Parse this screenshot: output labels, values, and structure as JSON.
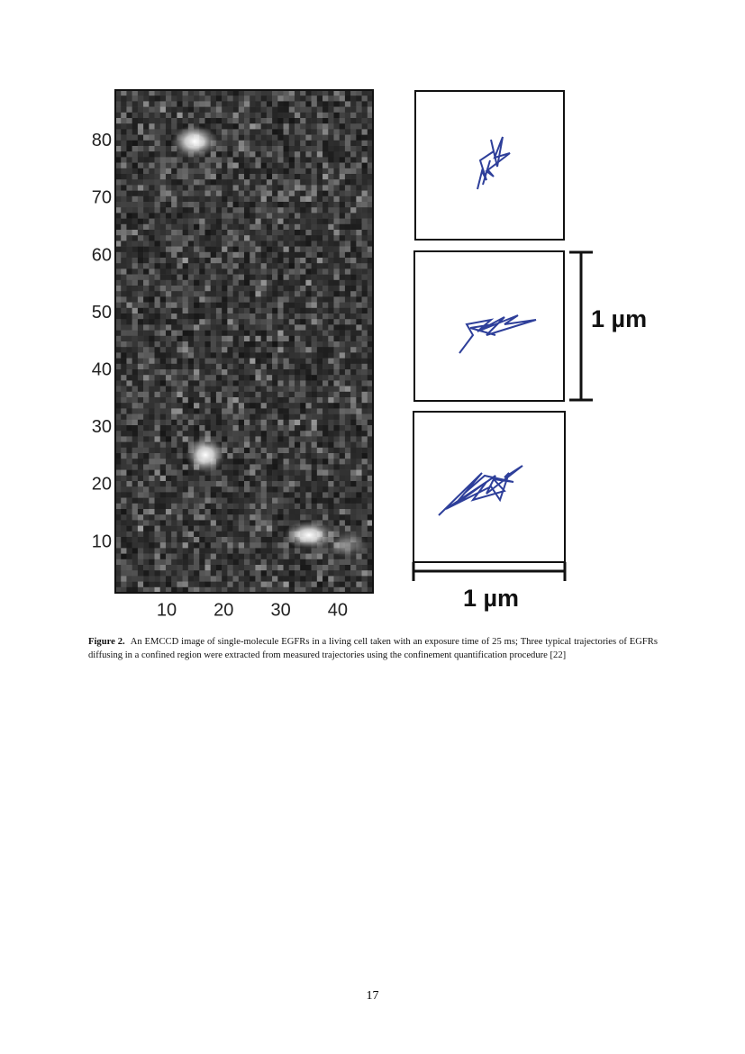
{
  "figure": {
    "image_axes": {
      "yticks": [
        10,
        20,
        30,
        40,
        50,
        60,
        70,
        80
      ],
      "xticks": [
        10,
        20,
        30,
        40
      ]
    },
    "scale_bar_vertical": "1 µm",
    "scale_bar_horizontal": "1 µm"
  },
  "caption": {
    "label": "Figure 2.",
    "text": "An EMCCD image of single-molecule EGFRs in a living cell taken with an exposure time of 25 ms; Three typical trajectories of EGFRs diffusing in a confined region were extracted from measured trajectories using the confinement quantification procedure [22]"
  },
  "page_number": "17"
}
